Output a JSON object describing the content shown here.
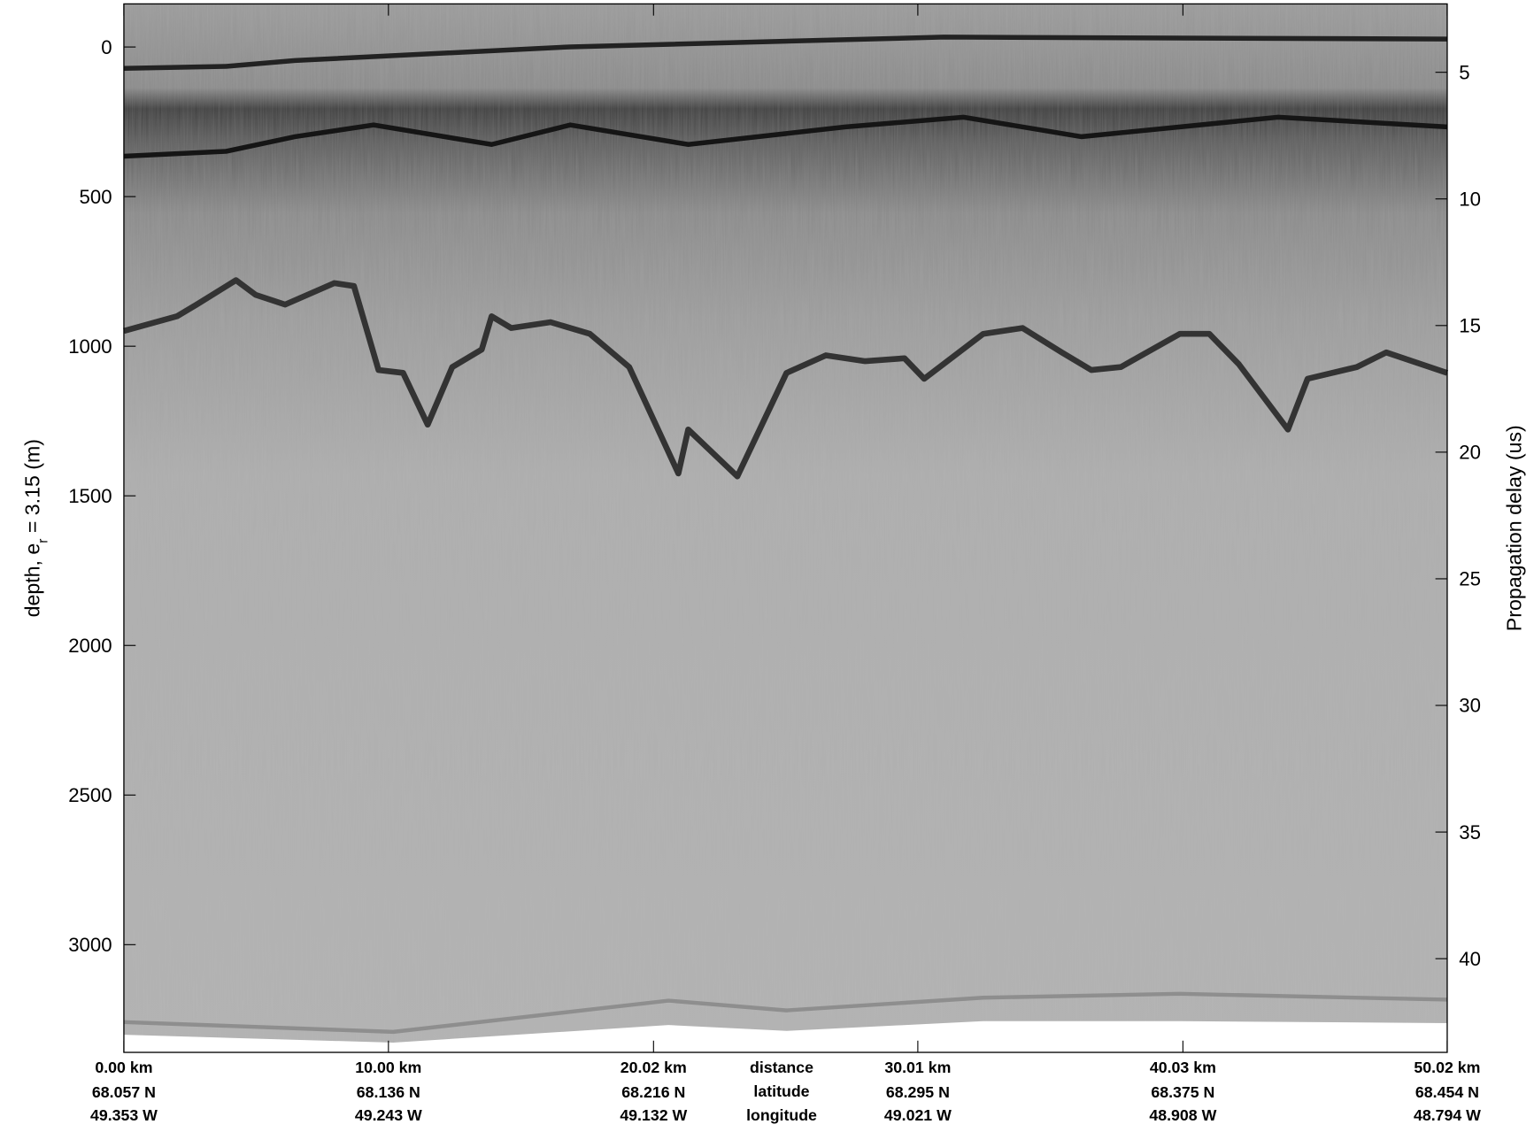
{
  "chart_data": {
    "type": "echogram",
    "ylabel": [
      "depth, e",
      "r",
      " = 3.15 (m)"
    ],
    "y2label": "Propagation delay (us)",
    "ylim": [
      3360,
      -144
    ],
    "yticks": [
      0,
      500,
      1000,
      1500,
      2000,
      2500,
      3000
    ],
    "y2lim": [
      43.7,
      2.3
    ],
    "y2ticks": [
      5,
      10,
      15,
      20,
      25,
      30,
      35,
      40
    ],
    "xlim": [
      0,
      50.02
    ],
    "xticks": [
      {
        "value": 0,
        "label": "0.00 km"
      },
      {
        "value": 10.0,
        "label": "10.00 km"
      },
      {
        "value": 20.02,
        "label": "20.02 km"
      },
      {
        "value": 30.01,
        "label": "30.01 km"
      },
      {
        "value": 40.03,
        "label": "40.03 km"
      },
      {
        "value": 50.02,
        "label": "50.02 km"
      }
    ],
    "latitude": [
      "68.057 N",
      "68.136 N",
      "68.216 N",
      "68.295 N",
      "68.375 N",
      "68.454 N"
    ],
    "longitude": [
      "49.353 W",
      "49.243 W",
      "49.132 W",
      "49.021 W",
      "48.908 W",
      "48.794 W"
    ],
    "row_labels": [
      "distance",
      "latitude",
      "longitude"
    ]
  }
}
